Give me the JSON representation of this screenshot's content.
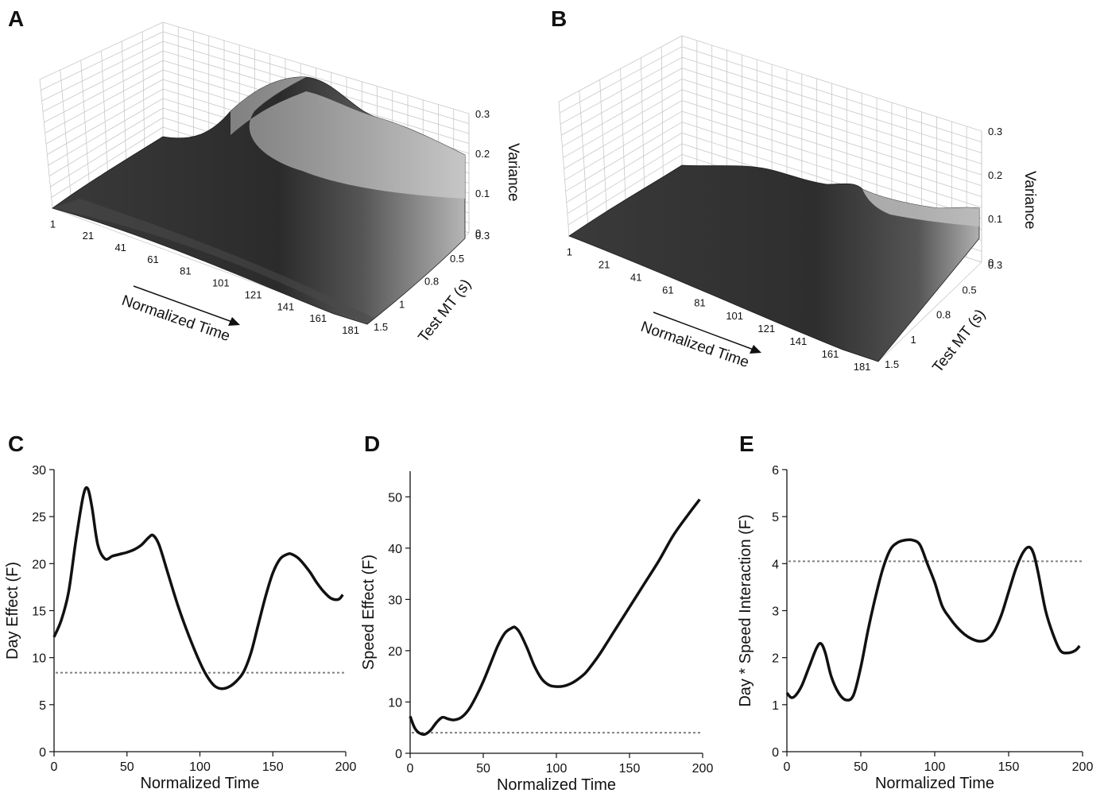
{
  "panels": {
    "A": {
      "letter": "A"
    },
    "B": {
      "letter": "B"
    },
    "C": {
      "letter": "C"
    },
    "D": {
      "letter": "D"
    },
    "E": {
      "letter": "E"
    }
  },
  "surface_plots": [
    {
      "panel": "A",
      "type": "surface3d",
      "xlabel": "Normalized Time",
      "ylabel": "Test MT (s)",
      "zlabel": "Variance",
      "x_ticks": [
        "1",
        "21",
        "41",
        "61",
        "81",
        "101",
        "121",
        "141",
        "161",
        "181"
      ],
      "y_ticks": [
        "0.3",
        "0.5",
        "0.8",
        "1",
        "1.5"
      ],
      "z_ticks": [
        "0",
        "0.1",
        "0.2",
        "0.3"
      ],
      "colors": {
        "surface_dark": "#2a2a2a",
        "surface_light": "#bdbdbd"
      }
    },
    {
      "panel": "B",
      "type": "surface3d",
      "xlabel": "Normalized Time",
      "ylabel": "Test MT (s)",
      "zlabel": "Variance",
      "x_ticks": [
        "1",
        "21",
        "41",
        "61",
        "81",
        "101",
        "121",
        "141",
        "161",
        "181"
      ],
      "y_ticks": [
        "0.3",
        "0.5",
        "0.8",
        "1",
        "1.5"
      ],
      "z_ticks": [
        "0",
        "0.1",
        "0.2",
        "0.3"
      ],
      "colors": {
        "surface_dark": "#2a2a2a",
        "surface_light": "#bdbdbd"
      }
    }
  ],
  "chart_data": [
    {
      "panel": "C",
      "type": "line",
      "xlabel": "Normalized Time",
      "ylabel": "Day Effect (F)",
      "xlim": [
        0,
        200
      ],
      "ylim": [
        0,
        30
      ],
      "x_ticks": [
        0,
        50,
        100,
        150,
        200
      ],
      "y_ticks": [
        0,
        5,
        10,
        15,
        20,
        25,
        30
      ],
      "threshold": 8.4,
      "series": [
        {
          "x": [
            0,
            5,
            10,
            15,
            20,
            23,
            26,
            30,
            35,
            40,
            45,
            50,
            55,
            60,
            65,
            68,
            72,
            78,
            85,
            92,
            100,
            105,
            110,
            115,
            120,
            125,
            130,
            135,
            140,
            145,
            150,
            155,
            160,
            163,
            168,
            175,
            180,
            185,
            190,
            195,
            198
          ],
          "y": [
            12.2,
            14.0,
            17.0,
            22.5,
            27.2,
            28.0,
            26.0,
            22.0,
            20.5,
            20.8,
            21.0,
            21.2,
            21.5,
            22.0,
            22.8,
            23.0,
            22.0,
            19.0,
            15.5,
            12.5,
            9.5,
            8.0,
            7.0,
            6.7,
            6.9,
            7.5,
            8.5,
            10.5,
            13.5,
            16.5,
            19.0,
            20.5,
            21.0,
            21.0,
            20.5,
            19.2,
            18.0,
            17.0,
            16.3,
            16.2,
            16.7
          ]
        }
      ],
      "colors": {
        "line": "#111111",
        "threshold": "#808080"
      }
    },
    {
      "panel": "D",
      "type": "line",
      "xlabel": "Normalized Time",
      "ylabel": "Speed Effect (F)",
      "xlim": [
        0,
        200
      ],
      "ylim": [
        0,
        55
      ],
      "x_ticks": [
        0,
        50,
        100,
        150,
        200
      ],
      "y_ticks": [
        0,
        10,
        20,
        30,
        40,
        50
      ],
      "threshold": 4.0,
      "series": [
        {
          "x": [
            0,
            3,
            6,
            10,
            14,
            18,
            22,
            26,
            30,
            35,
            40,
            45,
            50,
            55,
            60,
            65,
            70,
            72,
            75,
            80,
            85,
            90,
            95,
            100,
            105,
            110,
            115,
            120,
            125,
            130,
            140,
            150,
            160,
            170,
            180,
            190,
            198
          ],
          "y": [
            7.2,
            5.0,
            4.0,
            3.7,
            4.5,
            6.0,
            7.0,
            6.7,
            6.5,
            7.0,
            8.5,
            11.0,
            14.0,
            17.5,
            21.0,
            23.5,
            24.5,
            24.5,
            23.5,
            20.5,
            17.0,
            14.5,
            13.3,
            13.0,
            13.1,
            13.6,
            14.5,
            15.7,
            17.5,
            19.5,
            24.0,
            28.5,
            33.0,
            37.5,
            42.5,
            46.5,
            49.5
          ]
        }
      ],
      "colors": {
        "line": "#111111",
        "threshold": "#808080"
      }
    },
    {
      "panel": "E",
      "type": "line",
      "xlabel": "Normalized Time",
      "ylabel": "Day * Speed Interaction (F)",
      "xlim": [
        0,
        200
      ],
      "ylim": [
        0,
        6
      ],
      "x_ticks": [
        0,
        50,
        100,
        150,
        200
      ],
      "y_ticks": [
        0,
        1,
        2,
        3,
        4,
        5,
        6
      ],
      "threshold": 4.05,
      "series": [
        {
          "x": [
            0,
            3,
            6,
            10,
            15,
            20,
            23,
            26,
            30,
            35,
            40,
            45,
            50,
            55,
            60,
            65,
            70,
            75,
            80,
            85,
            90,
            95,
            100,
            105,
            110,
            115,
            120,
            125,
            130,
            135,
            140,
            145,
            150,
            155,
            160,
            164,
            167,
            170,
            175,
            180,
            185,
            190,
            195,
            198
          ],
          "y": [
            1.25,
            1.15,
            1.2,
            1.4,
            1.8,
            2.2,
            2.3,
            2.1,
            1.6,
            1.25,
            1.1,
            1.2,
            1.8,
            2.6,
            3.3,
            3.9,
            4.3,
            4.45,
            4.5,
            4.5,
            4.4,
            4.0,
            3.6,
            3.1,
            2.85,
            2.65,
            2.5,
            2.4,
            2.35,
            2.38,
            2.55,
            2.9,
            3.4,
            3.9,
            4.25,
            4.35,
            4.2,
            3.8,
            3.0,
            2.5,
            2.15,
            2.1,
            2.15,
            2.25
          ]
        }
      ],
      "colors": {
        "line": "#111111",
        "threshold": "#808080"
      }
    }
  ]
}
